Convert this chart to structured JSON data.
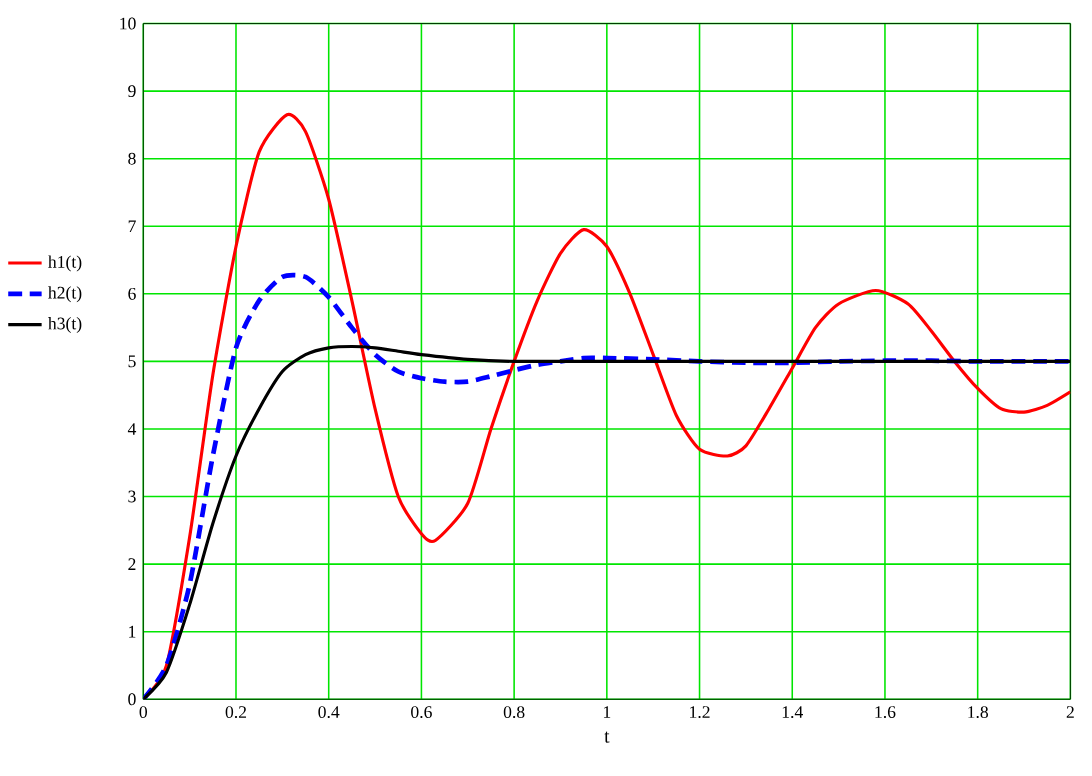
{
  "chart_data": {
    "type": "line",
    "xlabel": "t",
    "xlim": [
      0,
      2
    ],
    "ylim": [
      0,
      10
    ],
    "xticks": [
      0,
      0.2,
      0.4,
      0.6,
      0.8,
      1,
      1.2,
      1.4,
      1.6,
      1.8,
      2
    ],
    "yticks": [
      0,
      1,
      2,
      3,
      4,
      5,
      6,
      7,
      8,
      9,
      10
    ],
    "grid": true,
    "legend": "left",
    "series": [
      {
        "name": "h1(t)",
        "color": "#ff0000",
        "line_style": "solid",
        "x": [
          0,
          0.05,
          0.1,
          0.15,
          0.2,
          0.25,
          0.31,
          0.35,
          0.4,
          0.45,
          0.5,
          0.55,
          0.6,
          0.63,
          0.7,
          0.75,
          0.8,
          0.85,
          0.9,
          0.95,
          1.0,
          1.05,
          1.1,
          1.15,
          1.2,
          1.26,
          1.3,
          1.35,
          1.4,
          1.45,
          1.5,
          1.58,
          1.65,
          1.7,
          1.75,
          1.8,
          1.85,
          1.9,
          1.95,
          2.0
        ],
        "values": [
          0,
          0.5,
          2.4,
          4.8,
          6.7,
          8.1,
          8.65,
          8.4,
          7.4,
          5.9,
          4.3,
          3.0,
          2.45,
          2.35,
          2.9,
          4.0,
          5.0,
          5.9,
          6.6,
          6.95,
          6.7,
          6.0,
          5.1,
          4.2,
          3.7,
          3.6,
          3.75,
          4.3,
          4.9,
          5.5,
          5.85,
          6.05,
          5.85,
          5.45,
          5.0,
          4.6,
          4.3,
          4.25,
          4.35,
          4.55
        ]
      },
      {
        "name": "h2(t)",
        "color": "#0000ff",
        "line_style": "dashed",
        "x": [
          0,
          0.05,
          0.1,
          0.15,
          0.2,
          0.25,
          0.3,
          0.35,
          0.4,
          0.45,
          0.5,
          0.55,
          0.6,
          0.65,
          0.7,
          0.75,
          0.8,
          0.85,
          0.9,
          0.95,
          1.0,
          1.1,
          1.2,
          1.3,
          1.4,
          1.5,
          1.6,
          1.7,
          1.8,
          2.0
        ],
        "values": [
          0,
          0.5,
          1.7,
          3.6,
          5.2,
          5.9,
          6.25,
          6.25,
          5.95,
          5.5,
          5.1,
          4.85,
          4.75,
          4.7,
          4.7,
          4.78,
          4.87,
          4.95,
          5.0,
          5.05,
          5.05,
          5.03,
          5.0,
          4.98,
          4.98,
          5.0,
          5.01,
          5.01,
          5.0,
          5.0
        ]
      },
      {
        "name": "h3(t)",
        "color": "#000000",
        "line_style": "solid",
        "x": [
          0,
          0.05,
          0.1,
          0.15,
          0.2,
          0.25,
          0.3,
          0.35,
          0.4,
          0.45,
          0.5,
          0.55,
          0.6,
          0.7,
          0.8,
          1.0,
          2.0
        ],
        "values": [
          0,
          0.4,
          1.4,
          2.6,
          3.6,
          4.3,
          4.85,
          5.1,
          5.2,
          5.22,
          5.2,
          5.15,
          5.1,
          5.03,
          5.0,
          5.0,
          5.0
        ]
      }
    ]
  }
}
